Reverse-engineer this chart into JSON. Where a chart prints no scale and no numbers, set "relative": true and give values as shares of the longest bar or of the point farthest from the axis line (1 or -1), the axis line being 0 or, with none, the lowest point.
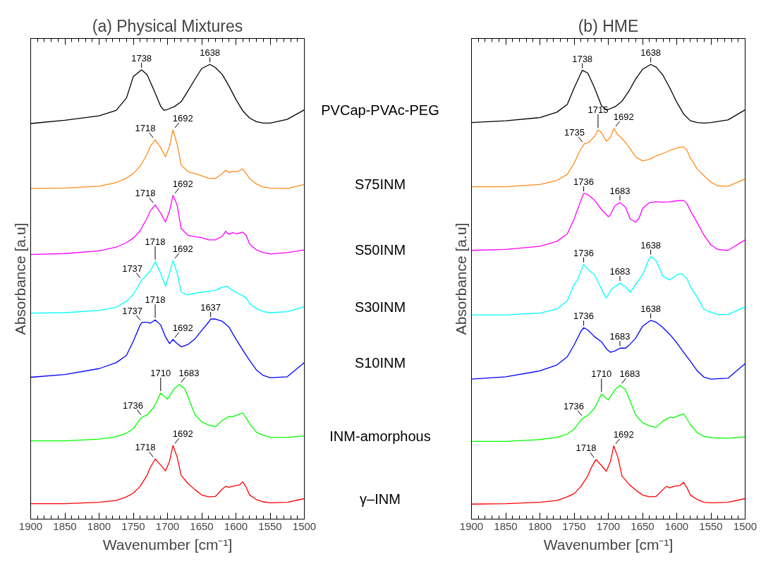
{
  "chart_data": [
    {
      "type": "line",
      "title": "(a) Physical Mixtures",
      "xlabel": "Wavenumber [cm⁻¹]",
      "ylabel": "Absorbance [a.u]",
      "relative": true,
      "xlim": [
        1900,
        1500
      ],
      "xticks": [
        1900,
        1850,
        1800,
        1750,
        1700,
        1650,
        1600,
        1550,
        1500
      ],
      "grid": false,
      "series": [
        {
          "name": "PVCap-PVAc-PEG",
          "color": "#000000",
          "x": [
            1900,
            1850,
            1800,
            1775,
            1760,
            1750,
            1738,
            1730,
            1720,
            1710,
            1705,
            1700,
            1690,
            1680,
            1670,
            1660,
            1650,
            1638,
            1630,
            1620,
            1610,
            1600,
            1590,
            1580,
            1570,
            1560,
            1550,
            1525,
            1500
          ],
          "values": [
            0.87,
            0.877,
            0.887,
            0.899,
            0.926,
            0.973,
            0.988,
            0.978,
            0.944,
            0.908,
            0.899,
            0.901,
            0.907,
            0.918,
            0.942,
            0.967,
            0.991,
            1.0,
            0.993,
            0.978,
            0.952,
            0.923,
            0.898,
            0.882,
            0.874,
            0.871,
            0.871,
            0.879,
            0.9
          ]
        },
        {
          "name": "S75INM",
          "color": "#ff8c1a",
          "x": [
            1900,
            1850,
            1800,
            1775,
            1760,
            1750,
            1740,
            1730,
            1725,
            1718,
            1710,
            1703,
            1697,
            1692,
            1686,
            1680,
            1670,
            1660,
            1650,
            1640,
            1630,
            1620,
            1615,
            1610,
            1605,
            1600,
            1595,
            1590,
            1585,
            1580,
            1570,
            1560,
            1550,
            1525,
            1500
          ],
          "values": [
            0.727,
            0.728,
            0.732,
            0.74,
            0.75,
            0.76,
            0.776,
            0.802,
            0.82,
            0.834,
            0.817,
            0.797,
            0.82,
            0.856,
            0.825,
            0.779,
            0.764,
            0.76,
            0.755,
            0.75,
            0.749,
            0.76,
            0.767,
            0.762,
            0.765,
            0.764,
            0.766,
            0.77,
            0.76,
            0.749,
            0.737,
            0.73,
            0.728,
            0.727,
            0.736
          ]
        },
        {
          "name": "S50INM",
          "color": "#ff00ff",
          "x": [
            1900,
            1850,
            1800,
            1775,
            1760,
            1750,
            1740,
            1730,
            1725,
            1718,
            1710,
            1703,
            1697,
            1692,
            1686,
            1680,
            1670,
            1660,
            1650,
            1640,
            1630,
            1620,
            1615,
            1610,
            1605,
            1600,
            1595,
            1590,
            1585,
            1580,
            1570,
            1560,
            1550,
            1525,
            1500
          ],
          "values": [
            0.582,
            0.584,
            0.59,
            0.598,
            0.608,
            0.618,
            0.634,
            0.662,
            0.678,
            0.691,
            0.673,
            0.653,
            0.678,
            0.712,
            0.691,
            0.639,
            0.624,
            0.621,
            0.619,
            0.614,
            0.614,
            0.622,
            0.633,
            0.626,
            0.63,
            0.628,
            0.629,
            0.631,
            0.624,
            0.605,
            0.592,
            0.586,
            0.583,
            0.586,
            0.592
          ]
        },
        {
          "name": "S30INM",
          "color": "#00ffff",
          "x": [
            1900,
            1850,
            1800,
            1775,
            1760,
            1750,
            1740,
            1737,
            1730,
            1725,
            1718,
            1710,
            1703,
            1697,
            1692,
            1686,
            1680,
            1670,
            1660,
            1650,
            1640,
            1630,
            1620,
            1613,
            1605,
            1600,
            1590,
            1585,
            1580,
            1570,
            1560,
            1550,
            1525,
            1500
          ],
          "values": [
            0.453,
            0.454,
            0.459,
            0.466,
            0.479,
            0.494,
            0.52,
            0.526,
            0.538,
            0.546,
            0.566,
            0.541,
            0.512,
            0.541,
            0.569,
            0.541,
            0.499,
            0.493,
            0.497,
            0.499,
            0.501,
            0.503,
            0.51,
            0.512,
            0.503,
            0.499,
            0.491,
            0.486,
            0.474,
            0.463,
            0.456,
            0.454,
            0.456,
            0.467
          ]
        },
        {
          "name": "S10INM",
          "color": "#0000ff",
          "x": [
            1900,
            1850,
            1800,
            1775,
            1760,
            1750,
            1740,
            1737,
            1730,
            1725,
            1718,
            1710,
            1703,
            1697,
            1692,
            1686,
            1680,
            1670,
            1660,
            1650,
            1640,
            1637,
            1630,
            1620,
            1610,
            1600,
            1590,
            1580,
            1570,
            1560,
            1550,
            1525,
            1500
          ],
          "values": [
            0.312,
            0.318,
            0.331,
            0.344,
            0.36,
            0.391,
            0.427,
            0.433,
            0.433,
            0.431,
            0.438,
            0.427,
            0.401,
            0.386,
            0.395,
            0.386,
            0.379,
            0.384,
            0.396,
            0.415,
            0.433,
            0.44,
            0.44,
            0.435,
            0.422,
            0.396,
            0.372,
            0.349,
            0.328,
            0.316,
            0.311,
            0.313,
            0.344
          ]
        },
        {
          "name": "INM-amorphous",
          "color": "#00ff00",
          "x": [
            1900,
            1850,
            1800,
            1775,
            1760,
            1750,
            1740,
            1736,
            1730,
            1720,
            1710,
            1700,
            1690,
            1683,
            1675,
            1670,
            1660,
            1650,
            1640,
            1630,
            1620,
            1610,
            1605,
            1600,
            1590,
            1580,
            1570,
            1560,
            1550,
            1525,
            1500
          ],
          "values": [
            0.172,
            0.172,
            0.176,
            0.181,
            0.189,
            0.199,
            0.22,
            0.225,
            0.229,
            0.246,
            0.277,
            0.264,
            0.287,
            0.296,
            0.287,
            0.269,
            0.23,
            0.214,
            0.207,
            0.203,
            0.217,
            0.226,
            0.225,
            0.228,
            0.234,
            0.21,
            0.191,
            0.184,
            0.18,
            0.18,
            0.183
          ]
        },
        {
          "name": "γ–INM",
          "color": "#ff0000",
          "x": [
            1900,
            1850,
            1800,
            1775,
            1760,
            1750,
            1740,
            1730,
            1725,
            1718,
            1710,
            1703,
            1697,
            1692,
            1686,
            1680,
            1670,
            1660,
            1650,
            1640,
            1630,
            1620,
            1615,
            1610,
            1605,
            1600,
            1595,
            1590,
            1585,
            1580,
            1570,
            1560,
            1550,
            1525,
            1500
          ],
          "values": [
            0.034,
            0.034,
            0.037,
            0.041,
            0.049,
            0.057,
            0.072,
            0.096,
            0.114,
            0.132,
            0.119,
            0.106,
            0.127,
            0.162,
            0.137,
            0.096,
            0.078,
            0.065,
            0.053,
            0.049,
            0.05,
            0.066,
            0.072,
            0.07,
            0.072,
            0.074,
            0.075,
            0.082,
            0.07,
            0.053,
            0.043,
            0.038,
            0.036,
            0.037,
            0.045
          ]
        }
      ],
      "annotations": [
        {
          "text": "1738",
          "x": 1738,
          "y": 0.988
        },
        {
          "text": "1638",
          "x": 1638,
          "y": 1.0
        },
        {
          "text": "1718",
          "x": 1718,
          "y": 0.834
        },
        {
          "text": "1692",
          "x": 1692,
          "y": 0.856
        },
        {
          "text": "1718",
          "x": 1718,
          "y": 0.691
        },
        {
          "text": "1692",
          "x": 1692,
          "y": 0.712
        },
        {
          "text": "1737",
          "x": 1737,
          "y": 0.526
        },
        {
          "text": "1718",
          "x": 1718,
          "y": 0.566
        },
        {
          "text": "1692",
          "x": 1692,
          "y": 0.569
        },
        {
          "text": "1737",
          "x": 1737,
          "y": 0.433
        },
        {
          "text": "1718",
          "x": 1718,
          "y": 0.438
        },
        {
          "text": "1692",
          "x": 1692,
          "y": 0.395
        },
        {
          "text": "1637",
          "x": 1637,
          "y": 0.44
        },
        {
          "text": "1736",
          "x": 1736,
          "y": 0.225
        },
        {
          "text": "1710",
          "x": 1710,
          "y": 0.277
        },
        {
          "text": "1683",
          "x": 1683,
          "y": 0.296
        },
        {
          "text": "1718",
          "x": 1718,
          "y": 0.132
        },
        {
          "text": "1692",
          "x": 1692,
          "y": 0.162
        }
      ]
    },
    {
      "type": "line",
      "title": "(b) HME",
      "xlabel": "Wavenumber [cm⁻¹]",
      "ylabel": "Absorbance [a.u]",
      "relative": true,
      "xlim": [
        1900,
        1500
      ],
      "xticks": [
        1900,
        1850,
        1800,
        1750,
        1700,
        1650,
        1600,
        1550,
        1500
      ],
      "grid": false,
      "series": [
        {
          "color": "#000000",
          "x": [
            1900,
            1850,
            1800,
            1775,
            1760,
            1750,
            1738,
            1730,
            1720,
            1710,
            1703,
            1700,
            1690,
            1680,
            1670,
            1660,
            1650,
            1638,
            1630,
            1620,
            1610,
            1600,
            1590,
            1580,
            1570,
            1560,
            1550,
            1525,
            1500
          ],
          "values": [
            0.872,
            0.876,
            0.883,
            0.895,
            0.912,
            0.948,
            0.987,
            0.981,
            0.948,
            0.909,
            0.9,
            0.901,
            0.907,
            0.919,
            0.941,
            0.968,
            0.989,
            1.0,
            0.994,
            0.976,
            0.948,
            0.917,
            0.891,
            0.876,
            0.872,
            0.871,
            0.872,
            0.878,
            0.9
          ]
        },
        {
          "color": "#ff8c1a",
          "x": [
            1900,
            1850,
            1800,
            1775,
            1760,
            1750,
            1740,
            1735,
            1728,
            1720,
            1715,
            1710,
            1703,
            1697,
            1692,
            1686,
            1680,
            1670,
            1660,
            1650,
            1640,
            1630,
            1620,
            1610,
            1600,
            1590,
            1585,
            1580,
            1570,
            1560,
            1550,
            1540,
            1525,
            1500
          ],
          "values": [
            0.731,
            0.731,
            0.736,
            0.745,
            0.758,
            0.783,
            0.814,
            0.825,
            0.829,
            0.842,
            0.856,
            0.85,
            0.831,
            0.839,
            0.859,
            0.845,
            0.837,
            0.819,
            0.796,
            0.788,
            0.791,
            0.799,
            0.804,
            0.811,
            0.816,
            0.819,
            0.811,
            0.794,
            0.77,
            0.755,
            0.741,
            0.733,
            0.732,
            0.748
          ]
        },
        {
          "color": "#ff00ff",
          "x": [
            1900,
            1850,
            1800,
            1775,
            1760,
            1750,
            1740,
            1736,
            1730,
            1720,
            1710,
            1700,
            1697,
            1690,
            1683,
            1675,
            1668,
            1660,
            1655,
            1650,
            1640,
            1630,
            1620,
            1610,
            1600,
            1590,
            1585,
            1580,
            1570,
            1560,
            1550,
            1540,
            1525,
            1500
          ],
          "values": [
            0.591,
            0.593,
            0.6,
            0.611,
            0.627,
            0.66,
            0.701,
            0.716,
            0.714,
            0.701,
            0.681,
            0.665,
            0.669,
            0.69,
            0.696,
            0.686,
            0.66,
            0.653,
            0.662,
            0.683,
            0.696,
            0.698,
            0.697,
            0.698,
            0.7,
            0.701,
            0.694,
            0.678,
            0.652,
            0.624,
            0.603,
            0.593,
            0.591,
            0.614
          ]
        },
        {
          "color": "#00ffff",
          "x": [
            1900,
            1850,
            1800,
            1775,
            1760,
            1750,
            1745,
            1736,
            1730,
            1720,
            1710,
            1703,
            1695,
            1683,
            1675,
            1668,
            1660,
            1650,
            1640,
            1637,
            1630,
            1620,
            1610,
            1600,
            1593,
            1585,
            1580,
            1570,
            1560,
            1550,
            1540,
            1525,
            1500
          ],
          "values": [
            0.449,
            0.449,
            0.453,
            0.462,
            0.48,
            0.516,
            0.526,
            0.56,
            0.55,
            0.537,
            0.506,
            0.486,
            0.506,
            0.519,
            0.511,
            0.499,
            0.516,
            0.537,
            0.573,
            0.577,
            0.568,
            0.534,
            0.526,
            0.537,
            0.54,
            0.529,
            0.511,
            0.488,
            0.461,
            0.455,
            0.45,
            0.45,
            0.467
          ]
        },
        {
          "color": "#0000ff",
          "x": [
            1900,
            1850,
            1800,
            1775,
            1760,
            1750,
            1740,
            1736,
            1730,
            1720,
            1710,
            1703,
            1697,
            1690,
            1683,
            1675,
            1670,
            1660,
            1650,
            1640,
            1638,
            1630,
            1620,
            1610,
            1600,
            1590,
            1580,
            1570,
            1560,
            1550,
            1525,
            1500
          ],
          "values": [
            0.308,
            0.313,
            0.326,
            0.339,
            0.357,
            0.383,
            0.413,
            0.421,
            0.416,
            0.401,
            0.39,
            0.375,
            0.367,
            0.37,
            0.376,
            0.376,
            0.382,
            0.398,
            0.424,
            0.435,
            0.437,
            0.433,
            0.421,
            0.406,
            0.388,
            0.367,
            0.347,
            0.326,
            0.312,
            0.308,
            0.31,
            0.342
          ]
        },
        {
          "color": "#00ff00",
          "x": [
            1900,
            1850,
            1800,
            1775,
            1760,
            1750,
            1740,
            1736,
            1730,
            1720,
            1710,
            1700,
            1690,
            1683,
            1675,
            1670,
            1660,
            1650,
            1640,
            1630,
            1620,
            1610,
            1605,
            1600,
            1590,
            1580,
            1570,
            1560,
            1550,
            1525,
            1500
          ],
          "values": [
            0.171,
            0.171,
            0.175,
            0.18,
            0.187,
            0.198,
            0.218,
            0.223,
            0.228,
            0.244,
            0.275,
            0.262,
            0.285,
            0.294,
            0.285,
            0.267,
            0.229,
            0.212,
            0.205,
            0.202,
            0.216,
            0.224,
            0.223,
            0.226,
            0.232,
            0.208,
            0.19,
            0.182,
            0.179,
            0.178,
            0.181
          ]
        },
        {
          "color": "#ff0000",
          "x": [
            1900,
            1850,
            1800,
            1775,
            1760,
            1750,
            1740,
            1730,
            1725,
            1718,
            1710,
            1703,
            1697,
            1692,
            1686,
            1680,
            1670,
            1660,
            1650,
            1640,
            1630,
            1620,
            1615,
            1610,
            1605,
            1600,
            1595,
            1590,
            1585,
            1580,
            1570,
            1560,
            1550,
            1525,
            1500
          ],
          "values": [
            0.033,
            0.034,
            0.037,
            0.041,
            0.049,
            0.056,
            0.072,
            0.095,
            0.113,
            0.131,
            0.118,
            0.105,
            0.126,
            0.161,
            0.136,
            0.095,
            0.077,
            0.064,
            0.053,
            0.049,
            0.05,
            0.065,
            0.072,
            0.069,
            0.072,
            0.073,
            0.074,
            0.081,
            0.069,
            0.053,
            0.043,
            0.037,
            0.036,
            0.037,
            0.045
          ]
        }
      ],
      "annotations": [
        {
          "text": "1738",
          "x": 1738,
          "y": 0.987
        },
        {
          "text": "1638",
          "x": 1638,
          "y": 1.0
        },
        {
          "text": "1735",
          "x": 1735,
          "y": 0.825
        },
        {
          "text": "1715",
          "x": 1715,
          "y": 0.856
        },
        {
          "text": "1692",
          "x": 1692,
          "y": 0.859
        },
        {
          "text": "1736",
          "x": 1736,
          "y": 0.716
        },
        {
          "text": "1683",
          "x": 1683,
          "y": 0.696
        },
        {
          "text": "1736",
          "x": 1736,
          "y": 0.56
        },
        {
          "text": "1683",
          "x": 1683,
          "y": 0.519
        },
        {
          "text": "1638",
          "x": 1638,
          "y": 0.577
        },
        {
          "text": "1736",
          "x": 1736,
          "y": 0.421
        },
        {
          "text": "1683",
          "x": 1683,
          "y": 0.376
        },
        {
          "text": "1638",
          "x": 1638,
          "y": 0.437
        },
        {
          "text": "1736",
          "x": 1736,
          "y": 0.223
        },
        {
          "text": "1710",
          "x": 1710,
          "y": 0.275
        },
        {
          "text": "1683",
          "x": 1683,
          "y": 0.294
        },
        {
          "text": "1718",
          "x": 1718,
          "y": 0.131
        },
        {
          "text": "1692",
          "x": 1692,
          "y": 0.161
        }
      ]
    }
  ]
}
